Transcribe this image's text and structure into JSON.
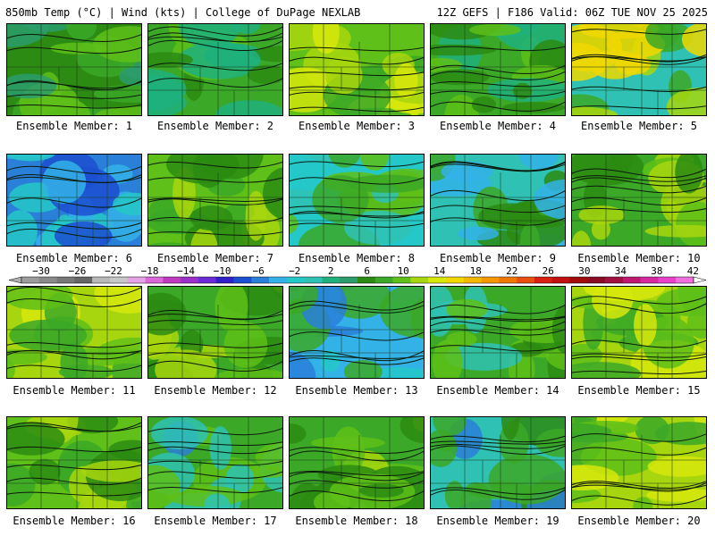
{
  "header": {
    "left": "850mb Temp (°C) | Wind (kts) | College of DuPage NEXLAB",
    "right": "12Z GEFS | F186 Valid: 06Z TUE NOV 25 2025"
  },
  "member_label": "Ensemble Member:",
  "members": [
    {
      "label": "Ensemble Member: 1",
      "palette": [
        "#2c8b12",
        "#3ba827",
        "#5ec018",
        "#2b9c6c"
      ]
    },
    {
      "label": "Ensemble Member: 2",
      "palette": [
        "#3ba827",
        "#1fb07e",
        "#5ec018",
        "#2c8b12"
      ]
    },
    {
      "label": "Ensemble Member: 3",
      "palette": [
        "#5ec018",
        "#a8d60e",
        "#3ba827",
        "#d7e80c"
      ]
    },
    {
      "label": "Ensemble Member: 4",
      "palette": [
        "#3ba827",
        "#2c8b12",
        "#5ec018",
        "#1fb07e"
      ]
    },
    {
      "label": "Ensemble Member: 5",
      "palette": [
        "#2fc2b4",
        "#3ba827",
        "#a8d60e",
        "#f0d800"
      ]
    },
    {
      "label": "Ensemble Member: 6",
      "palette": [
        "#2a7fd8",
        "#1c4fd0",
        "#33b2e8",
        "#25c8c8"
      ]
    },
    {
      "label": "Ensemble Member: 7",
      "palette": [
        "#5ec018",
        "#2c8b12",
        "#3ba827",
        "#a8d60e"
      ]
    },
    {
      "label": "Ensemble Member: 8",
      "palette": [
        "#25c8c8",
        "#3ba827",
        "#5ec018",
        "#2fc2b4"
      ]
    },
    {
      "label": "Ensemble Member: 9",
      "palette": [
        "#2fc2b4",
        "#3ba827",
        "#33b2e8",
        "#2c8b12"
      ]
    },
    {
      "label": "Ensemble Member: 10",
      "palette": [
        "#3ba827",
        "#5ec018",
        "#2c8b12",
        "#a8d60e"
      ]
    },
    {
      "label": "Ensemble Member: 11",
      "palette": [
        "#a8d60e",
        "#d7e80c",
        "#5ec018",
        "#3ba827"
      ]
    },
    {
      "label": "Ensemble Member: 12",
      "palette": [
        "#3ba827",
        "#5ec018",
        "#2c8b12",
        "#a8d60e"
      ]
    },
    {
      "label": "Ensemble Member: 13",
      "palette": [
        "#33b2e8",
        "#2a7fd8",
        "#3ba827",
        "#25c8c8"
      ]
    },
    {
      "label": "Ensemble Member: 14",
      "palette": [
        "#3ba827",
        "#2fc2b4",
        "#5ec018",
        "#2c8b12"
      ]
    },
    {
      "label": "Ensemble Member: 15",
      "palette": [
        "#a8d60e",
        "#5ec018",
        "#3ba827",
        "#d7e80c"
      ]
    },
    {
      "label": "Ensemble Member: 16",
      "palette": [
        "#5ec018",
        "#a8d60e",
        "#3ba827",
        "#2c8b12"
      ]
    },
    {
      "label": "Ensemble Member: 17",
      "palette": [
        "#3ba827",
        "#5ec018",
        "#2a7fd8",
        "#2fc2b4"
      ]
    },
    {
      "label": "Ensemble Member: 18",
      "palette": [
        "#3ba827",
        "#2c8b12",
        "#5ec018",
        "#a8d60e"
      ]
    },
    {
      "label": "Ensemble Member: 19",
      "palette": [
        "#2fc2b4",
        "#3ba827",
        "#2a7fd8",
        "#2c8b12"
      ]
    },
    {
      "label": "Ensemble Member: 20",
      "palette": [
        "#a8d60e",
        "#5ec018",
        "#d7e80c",
        "#3ba827"
      ]
    }
  ],
  "colorbar": {
    "labels": [
      "−30",
      "−26",
      "−22",
      "−18",
      "−14",
      "−10",
      "−6",
      "−2",
      "2",
      "6",
      "10",
      "14",
      "18",
      "22",
      "26",
      "30",
      "34",
      "38",
      "42"
    ],
    "colors": [
      "#9c9c9c",
      "#8a8a8a",
      "#787878",
      "#666666",
      "#b9b9b9",
      "#c7c7c7",
      "#e8a2e8",
      "#d968d8",
      "#c03ac0",
      "#9b30c8",
      "#6a2ad6",
      "#3020c8",
      "#1c4fd0",
      "#2a7fd8",
      "#33b2e8",
      "#25c8c8",
      "#2fc2b4",
      "#1fb07e",
      "#2b9c6c",
      "#2c8b12",
      "#3ba827",
      "#5ec018",
      "#a8d60e",
      "#d7e80c",
      "#f0d800",
      "#f5b800",
      "#f59800",
      "#f07800",
      "#e85010",
      "#d82010",
      "#c01010",
      "#a00c0c",
      "#8a0a24",
      "#a01040",
      "#c01870",
      "#d828a0",
      "#e840c8",
      "#f070e0"
    ]
  }
}
